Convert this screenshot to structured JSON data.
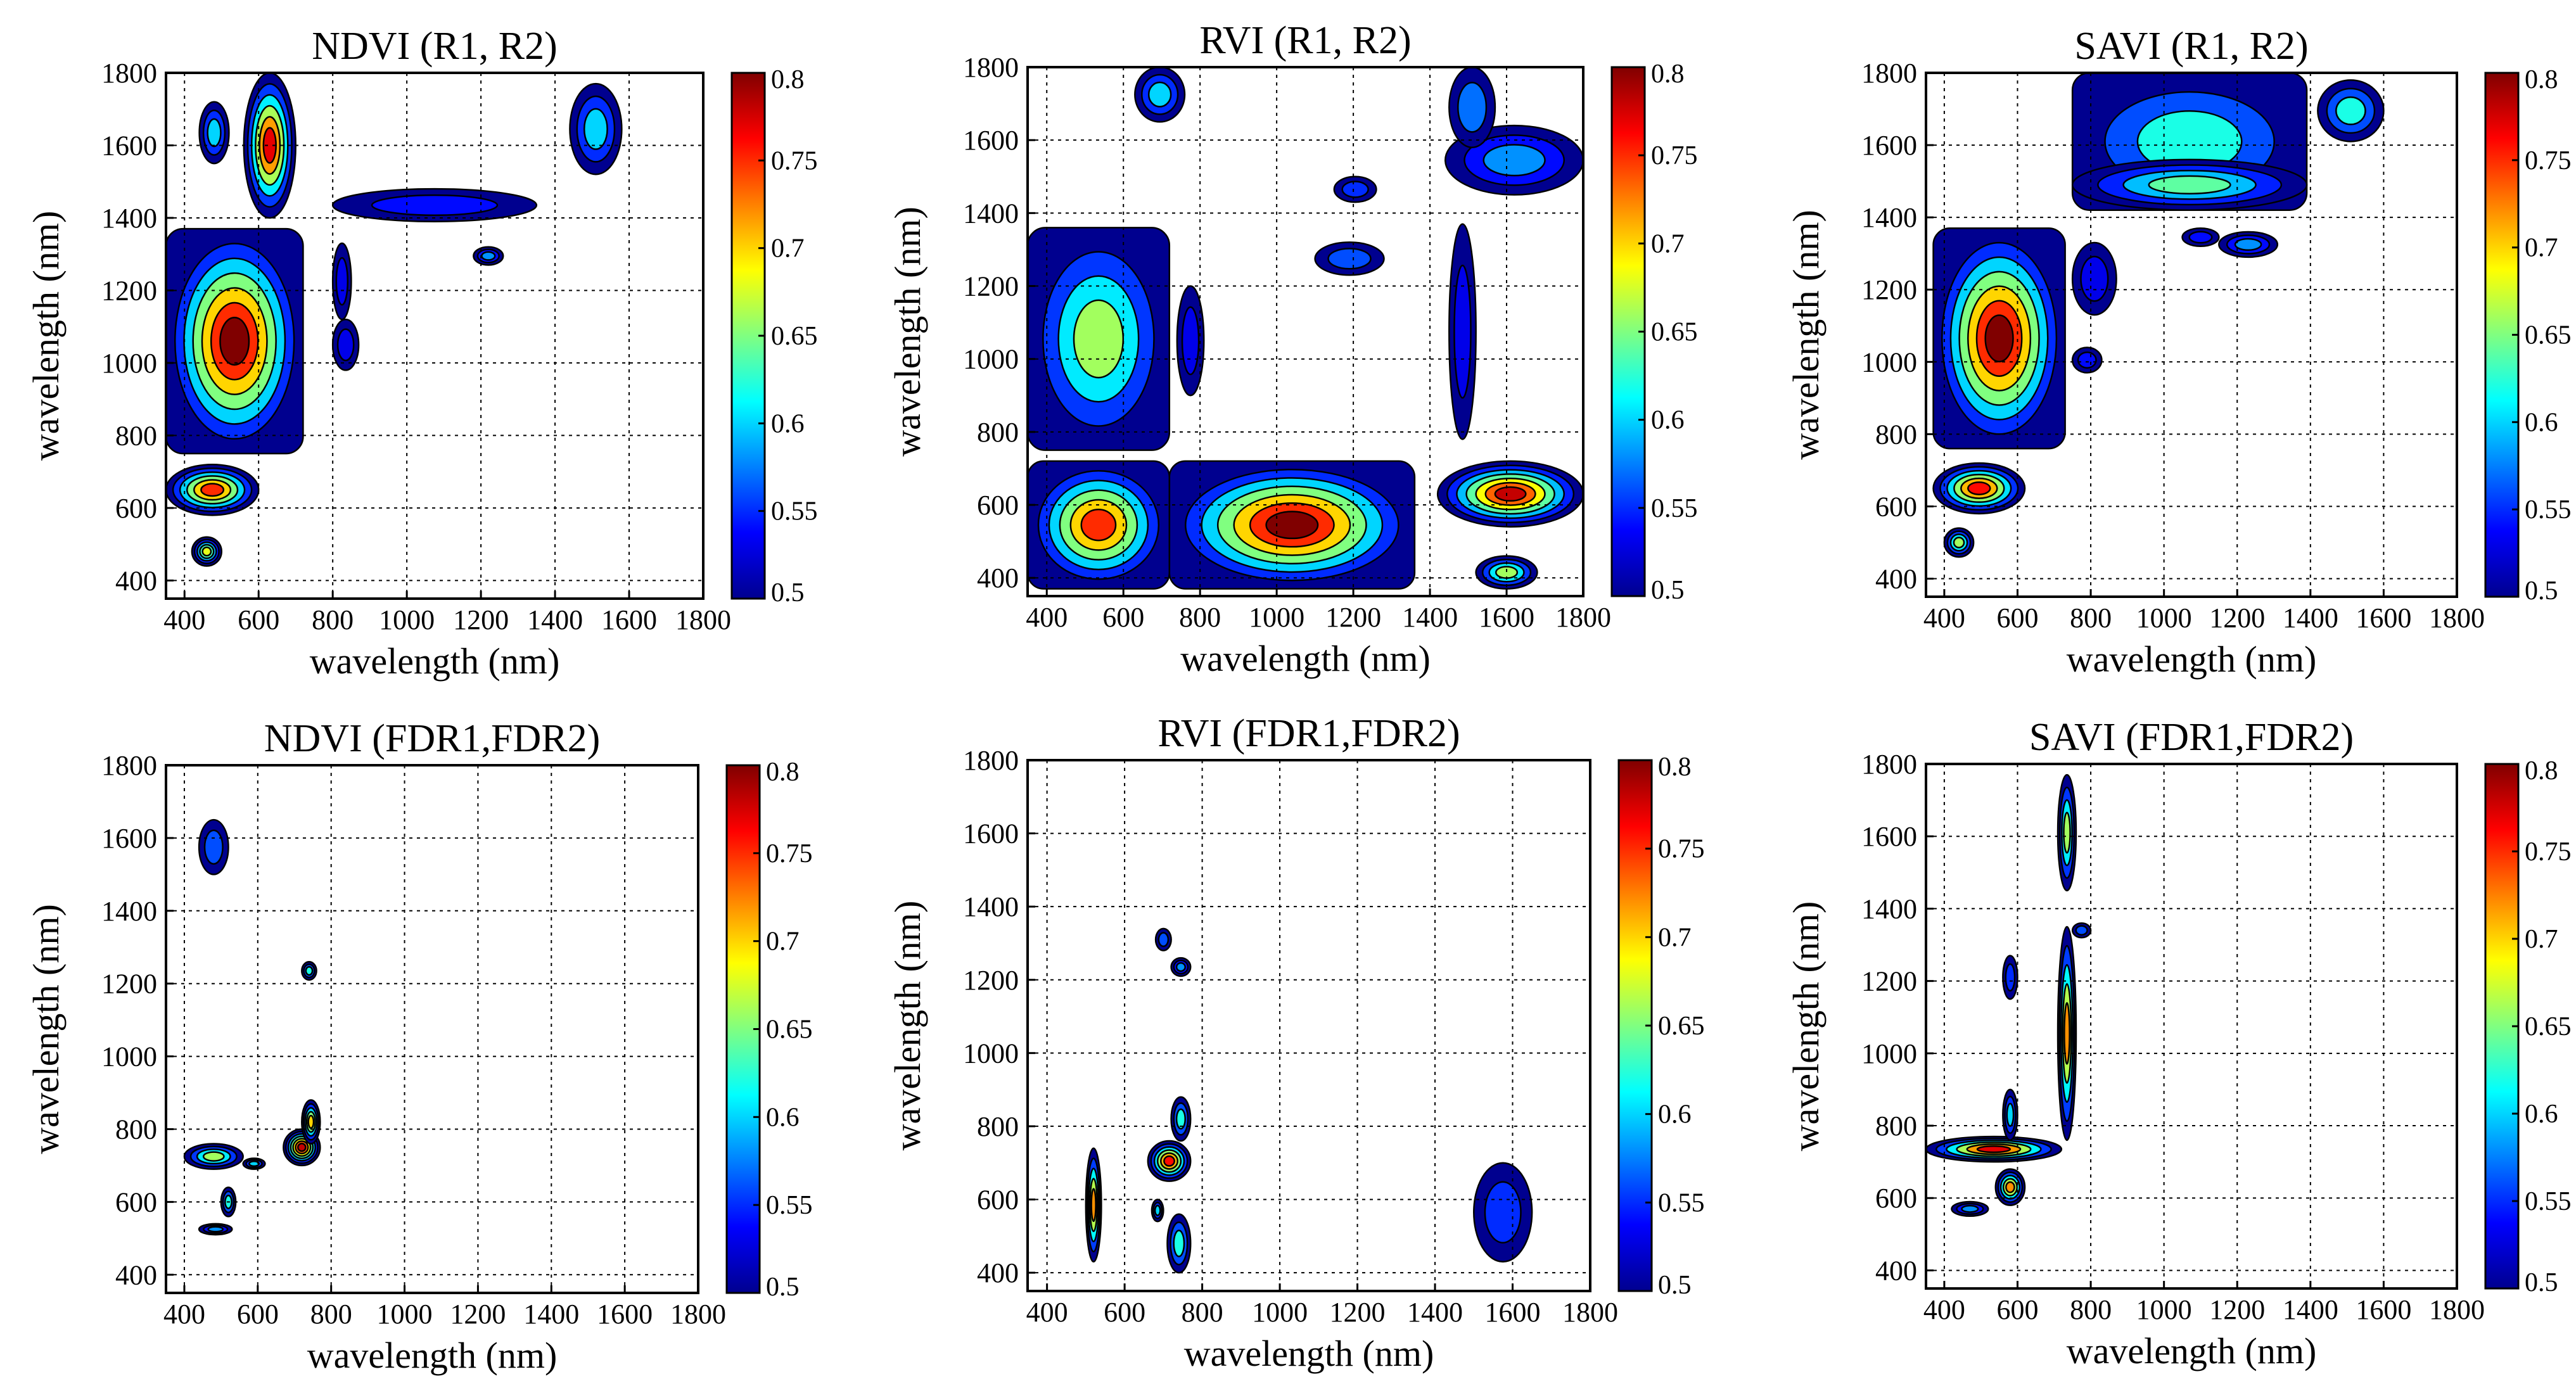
{
  "figure": {
    "colormap": [
      "#00008f",
      "#0000ff",
      "#0080ff",
      "#00ffff",
      "#80ff80",
      "#ffff00",
      "#ff8000",
      "#ff0000",
      "#800000"
    ],
    "frame_color": "#000000",
    "background": "#ffffff"
  },
  "chart_data": [
    {
      "type": "heatmap",
      "title": "NDVI (R1, R2)",
      "xlabel": "wavelength (nm)",
      "ylabel": "wavelength (nm)",
      "xlim": [
        350,
        1800
      ],
      "ylim": [
        350,
        1800
      ],
      "xticks": [
        400,
        600,
        800,
        1000,
        1200,
        1400,
        1600,
        1800
      ],
      "yticks": [
        400,
        600,
        800,
        1000,
        1200,
        1400,
        1600,
        1800
      ],
      "xtick_labels": [
        "400",
        "600",
        "800",
        "1000",
        "1200",
        "1400",
        "1600",
        "1800"
      ],
      "ytick_labels": [
        "400",
        "600",
        "800",
        "1000",
        "1200",
        "1400",
        "1600",
        "1800"
      ],
      "colorbar": {
        "range": [
          0.5,
          0.8
        ],
        "ticks": [
          "0.5",
          "0.55",
          "0.6",
          "0.65",
          "0.7",
          "0.75",
          "0.8"
        ]
      },
      "grid": true,
      "regions": [
        {
          "x": [
            350,
            720
          ],
          "y": [
            750,
            1370
          ],
          "peak": 0.8
        },
        {
          "x": [
            350,
            600
          ],
          "y": [
            580,
            720
          ],
          "peak": 0.75
        },
        {
          "x": [
            420,
            500
          ],
          "y": [
            440,
            520
          ],
          "peak": 0.68
        },
        {
          "x": [
            560,
            700
          ],
          "y": [
            1400,
            1800
          ],
          "peak": 0.77
        },
        {
          "x": [
            440,
            520
          ],
          "y": [
            1550,
            1720
          ],
          "peak": 0.6
        },
        {
          "x": [
            800,
            1350
          ],
          "y": [
            1390,
            1480
          ],
          "peak": 0.54
        },
        {
          "x": [
            1440,
            1580
          ],
          "y": [
            1520,
            1770
          ],
          "peak": 0.6
        },
        {
          "x": [
            800,
            850
          ],
          "y": [
            1120,
            1330
          ],
          "peak": 0.53
        },
        {
          "x": [
            1180,
            1260
          ],
          "y": [
            1270,
            1320
          ],
          "peak": 0.58
        },
        {
          "x": [
            800,
            870
          ],
          "y": [
            980,
            1120
          ],
          "peak": 0.53
        }
      ]
    },
    {
      "type": "heatmap",
      "title": "RVI (R1, R2)",
      "xlabel": "wavelength (nm)",
      "ylabel": "wavelength (nm)",
      "xlim": [
        350,
        1800
      ],
      "ylim": [
        350,
        1800
      ],
      "xticks": [
        400,
        600,
        800,
        1000,
        1200,
        1400,
        1600,
        1800
      ],
      "yticks": [
        400,
        600,
        800,
        1000,
        1200,
        1400,
        1600,
        1800
      ],
      "xtick_labels": [
        "400",
        "600",
        "800",
        "1000",
        "1200",
        "1400",
        "1600",
        "1800"
      ],
      "ytick_labels": [
        "400",
        "600",
        "800",
        "1000",
        "1200",
        "1400",
        "1600",
        "1800"
      ],
      "colorbar": {
        "range": [
          0.5,
          0.8
        ],
        "ticks": [
          "0.5",
          "0.55",
          "0.6",
          "0.65",
          "0.7",
          "0.75",
          "0.8"
        ]
      },
      "grid": true,
      "regions": [
        {
          "x": [
            350,
            720
          ],
          "y": [
            750,
            1360
          ],
          "peak": 0.66
        },
        {
          "x": [
            720,
            1360
          ],
          "y": [
            370,
            720
          ],
          "peak": 0.8
        },
        {
          "x": [
            350,
            720
          ],
          "y": [
            370,
            720
          ],
          "peak": 0.75
        },
        {
          "x": [
            1420,
            1800
          ],
          "y": [
            540,
            720
          ],
          "peak": 0.78
        },
        {
          "x": [
            1440,
            1800
          ],
          "y": [
            1450,
            1640
          ],
          "peak": 0.58
        },
        {
          "x": [
            1450,
            1570
          ],
          "y": [
            1580,
            1800
          ],
          "peak": 0.57
        },
        {
          "x": [
            630,
            760
          ],
          "y": [
            1650,
            1800
          ],
          "peak": 0.6
        },
        {
          "x": [
            1450,
            1520
          ],
          "y": [
            780,
            1370
          ],
          "peak": 0.53
        },
        {
          "x": [
            1150,
            1260
          ],
          "y": [
            1430,
            1500
          ],
          "peak": 0.55
        },
        {
          "x": [
            740,
            810
          ],
          "y": [
            900,
            1200
          ],
          "peak": 0.53
        },
        {
          "x": [
            1520,
            1680
          ],
          "y": [
            370,
            460
          ],
          "peak": 0.66
        },
        {
          "x": [
            1100,
            1280
          ],
          "y": [
            1230,
            1320
          ],
          "peak": 0.56
        }
      ]
    },
    {
      "type": "heatmap",
      "title": "SAVI (R1, R2)",
      "xlabel": "wavelength (nm)",
      "ylabel": "wavelength (nm)",
      "xlim": [
        350,
        1800
      ],
      "ylim": [
        350,
        1800
      ],
      "xticks": [
        400,
        600,
        800,
        1000,
        1200,
        1400,
        1600,
        1800
      ],
      "yticks": [
        400,
        600,
        800,
        1000,
        1200,
        1400,
        1600,
        1800
      ],
      "xtick_labels": [
        "400",
        "600",
        "800",
        "1000",
        "1200",
        "1400",
        "1600",
        "1800"
      ],
      "ytick_labels": [
        "400",
        "600",
        "800",
        "1000",
        "1200",
        "1400",
        "1600",
        "1800"
      ],
      "colorbar": {
        "range": [
          0.5,
          0.8
        ],
        "ticks": [
          "0.5",
          "0.55",
          "0.6",
          "0.65",
          "0.7",
          "0.75",
          "0.8"
        ]
      },
      "grid": true,
      "regions": [
        {
          "x": [
            370,
            730
          ],
          "y": [
            760,
            1370
          ],
          "peak": 0.8
        },
        {
          "x": [
            370,
            620
          ],
          "y": [
            580,
            720
          ],
          "peak": 0.76
        },
        {
          "x": [
            400,
            480
          ],
          "y": [
            460,
            540
          ],
          "peak": 0.66
        },
        {
          "x": [
            750,
            1390
          ],
          "y": [
            1420,
            1800
          ],
          "peak": 0.62
        },
        {
          "x": [
            750,
            1390
          ],
          "y": [
            1420,
            1560
          ],
          "peak": 0.64
        },
        {
          "x": [
            1420,
            1600
          ],
          "y": [
            1610,
            1780
          ],
          "peak": 0.62
        },
        {
          "x": [
            750,
            870
          ],
          "y": [
            1130,
            1330
          ],
          "peak": 0.53
        },
        {
          "x": [
            1150,
            1310
          ],
          "y": [
            1290,
            1360
          ],
          "peak": 0.58
        },
        {
          "x": [
            750,
            830
          ],
          "y": [
            970,
            1040
          ],
          "peak": 0.54
        },
        {
          "x": [
            1050,
            1150
          ],
          "y": [
            1320,
            1370
          ],
          "peak": 0.54
        }
      ]
    },
    {
      "type": "heatmap",
      "title": "NDVI (FDR1,FDR2)",
      "xlabel": "wavelength (nm)",
      "ylabel": "wavelength (nm)",
      "xlim": [
        350,
        1800
      ],
      "ylim": [
        350,
        1800
      ],
      "xticks": [
        400,
        600,
        800,
        1000,
        1200,
        1400,
        1600,
        1800
      ],
      "yticks": [
        400,
        600,
        800,
        1000,
        1200,
        1400,
        1600,
        1800
      ],
      "xtick_labels": [
        "400",
        "600",
        "800",
        "1000",
        "1200",
        "1400",
        "1600",
        "1800"
      ],
      "ytick_labels": [
        "400",
        "600",
        "800",
        "1000",
        "1200",
        "1400",
        "1600",
        "1800"
      ],
      "colorbar": {
        "range": [
          0.5,
          0.8
        ],
        "ticks": [
          "0.5",
          "0.55",
          "0.6",
          "0.65",
          "0.7",
          "0.75",
          "0.8"
        ]
      },
      "grid": true,
      "regions": [
        {
          "x": [
            400,
            560
          ],
          "y": [
            690,
            760
          ],
          "peak": 0.66
        },
        {
          "x": [
            670,
            770
          ],
          "y": [
            700,
            800
          ],
          "peak": 0.78
        },
        {
          "x": [
            720,
            770
          ],
          "y": [
            760,
            880
          ],
          "peak": 0.7
        },
        {
          "x": [
            440,
            530
          ],
          "y": [
            510,
            540
          ],
          "peak": 0.58
        },
        {
          "x": [
            500,
            540
          ],
          "y": [
            560,
            640
          ],
          "peak": 0.62
        },
        {
          "x": [
            720,
            760
          ],
          "y": [
            1210,
            1260
          ],
          "peak": 0.62
        },
        {
          "x": [
            440,
            520
          ],
          "y": [
            1500,
            1650
          ],
          "peak": 0.56
        },
        {
          "x": [
            560,
            620
          ],
          "y": [
            690,
            720
          ],
          "peak": 0.6
        }
      ]
    },
    {
      "type": "heatmap",
      "title": "RVI (FDR1,FDR2)",
      "xlabel": "wavelength (nm)",
      "ylabel": "wavelength (nm)",
      "xlim": [
        350,
        1800
      ],
      "ylim": [
        350,
        1800
      ],
      "xticks": [
        400,
        600,
        800,
        1000,
        1200,
        1400,
        1600,
        1800
      ],
      "yticks": [
        400,
        600,
        800,
        1000,
        1200,
        1400,
        1600,
        1800
      ],
      "xtick_labels": [
        "400",
        "600",
        "800",
        "1000",
        "1200",
        "1400",
        "1600",
        "1800"
      ],
      "ytick_labels": [
        "400",
        "600",
        "800",
        "1000",
        "1200",
        "1400",
        "1600",
        "1800"
      ],
      "colorbar": {
        "range": [
          0.5,
          0.8
        ],
        "ticks": [
          "0.5",
          "0.55",
          "0.6",
          "0.65",
          "0.7",
          "0.75",
          "0.8"
        ]
      },
      "grid": true,
      "regions": [
        {
          "x": [
            500,
            540
          ],
          "y": [
            430,
            740
          ],
          "peak": 0.72
        },
        {
          "x": [
            660,
            770
          ],
          "y": [
            650,
            760
          ],
          "peak": 0.76
        },
        {
          "x": [
            710,
            770
          ],
          "y": [
            400,
            560
          ],
          "peak": 0.62
        },
        {
          "x": [
            720,
            770
          ],
          "y": [
            760,
            880
          ],
          "peak": 0.62
        },
        {
          "x": [
            720,
            770
          ],
          "y": [
            1210,
            1260
          ],
          "peak": 0.58
        },
        {
          "x": [
            680,
            720
          ],
          "y": [
            1280,
            1340
          ],
          "peak": 0.56
        },
        {
          "x": [
            1500,
            1650
          ],
          "y": [
            430,
            700
          ],
          "peak": 0.55
        },
        {
          "x": [
            670,
            700
          ],
          "y": [
            540,
            600
          ],
          "peak": 0.6
        }
      ]
    },
    {
      "type": "heatmap",
      "title": "SAVI (FDR1,FDR2)",
      "xlabel": "wavelength (nm)",
      "ylabel": "wavelength (nm)",
      "xlim": [
        350,
        1800
      ],
      "ylim": [
        350,
        1800
      ],
      "xticks": [
        400,
        600,
        800,
        1000,
        1200,
        1400,
        1600,
        1800
      ],
      "yticks": [
        400,
        600,
        800,
        1000,
        1200,
        1400,
        1600,
        1800
      ],
      "xtick_labels": [
        "400",
        "600",
        "800",
        "1000",
        "1200",
        "1400",
        "1600",
        "1800"
      ],
      "ytick_labels": [
        "400",
        "600",
        "800",
        "1000",
        "1200",
        "1400",
        "1600",
        "1800"
      ],
      "colorbar": {
        "range": [
          0.5,
          0.8
        ],
        "ticks": [
          "0.5",
          "0.55",
          "0.6",
          "0.65",
          "0.7",
          "0.75",
          "0.8"
        ]
      },
      "grid": true,
      "regions": [
        {
          "x": [
            350,
            720
          ],
          "y": [
            700,
            770
          ],
          "peak": 0.77
        },
        {
          "x": [
            710,
            760
          ],
          "y": [
            760,
            1350
          ],
          "peak": 0.72
        },
        {
          "x": [
            710,
            760
          ],
          "y": [
            1450,
            1770
          ],
          "peak": 0.66
        },
        {
          "x": [
            540,
            620
          ],
          "y": [
            580,
            680
          ],
          "peak": 0.72
        },
        {
          "x": [
            560,
            600
          ],
          "y": [
            760,
            900
          ],
          "peak": 0.6
        },
        {
          "x": [
            560,
            600
          ],
          "y": [
            1150,
            1270
          ],
          "peak": 0.55
        },
        {
          "x": [
            420,
            520
          ],
          "y": [
            550,
            590
          ],
          "peak": 0.58
        },
        {
          "x": [
            750,
            800
          ],
          "y": [
            1320,
            1360
          ],
          "peak": 0.56
        }
      ]
    }
  ]
}
